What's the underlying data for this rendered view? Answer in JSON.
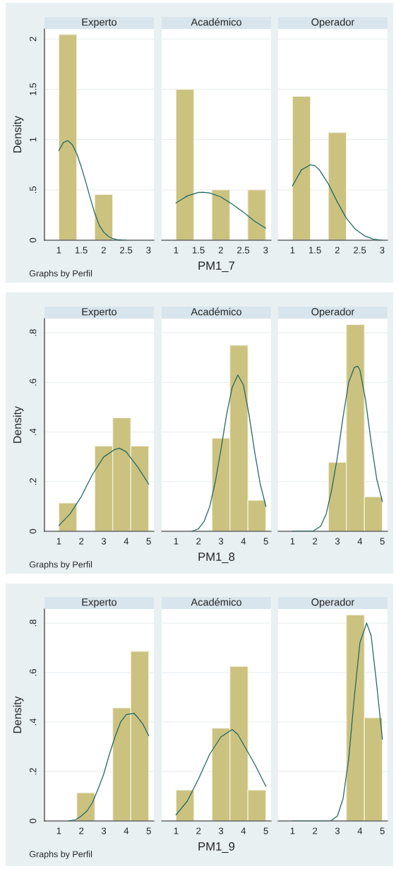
{
  "chart_data": [
    {
      "type": "histogram",
      "title": "Experto",
      "ylabel": "Density",
      "annotations": [
        "Graphs by Perfil"
      ],
      "grid": "y",
      "tick_labels": true,
      "xlim": [
        0.68,
        3.12
      ],
      "ylim": [
        0,
        2.1
      ],
      "xticks": [
        1,
        1.5,
        2,
        2.5,
        3
      ],
      "yticks": [
        0,
        {
          "value": 0.5,
          "label": ".5"
        },
        1,
        1.5,
        2
      ],
      "series": [
        {
          "color": "#cbc280",
          "bins": [
            1,
            1.4,
            1.8,
            2.2,
            2.6,
            3
          ],
          "values": [
            2.045,
            0,
            0.455,
            0,
            0
          ]
        },
        {
          "type": "line",
          "color": "#1f6660",
          "x": [
            1,
            1.1,
            1.2,
            1.3,
            1.4,
            1.5,
            1.6,
            1.7,
            1.8,
            1.9,
            2.0,
            2.1,
            2.2,
            2.3,
            2.4,
            2.5
          ],
          "values": [
            0.89,
            0.97,
            0.99,
            0.95,
            0.86,
            0.73,
            0.58,
            0.42,
            0.27,
            0.15,
            0.08,
            0.04,
            0.016,
            0.006,
            0.002,
            0
          ]
        }
      ]
    },
    {
      "type": "histogram",
      "title": "Académico",
      "xlabel": "PM1_7",
      "grid": "y",
      "tick_labels": "x",
      "xlim": [
        0.68,
        3.12
      ],
      "ylim": [
        0,
        2.1
      ],
      "xticks": [
        1,
        1.5,
        2,
        2.5,
        3
      ],
      "yticks": [
        {
          "value": 0,
          "label": null
        },
        {
          "value": 0.5,
          "label": null
        },
        {
          "value": 1,
          "label": null
        },
        {
          "value": 1.5,
          "label": null
        },
        {
          "value": 2,
          "label": null
        }
      ],
      "series": [
        {
          "color": "#cbc280",
          "bins": [
            1,
            1.4,
            1.8,
            2.2,
            2.6,
            3
          ],
          "values": [
            1.5,
            0,
            0.5,
            0,
            0.5
          ]
        },
        {
          "type": "line",
          "color": "#1f6660",
          "x": [
            1,
            1.25,
            1.5,
            1.6,
            1.75,
            2,
            2.25,
            2.5,
            2.75,
            3
          ],
          "values": [
            0.37,
            0.44,
            0.475,
            0.477,
            0.47,
            0.43,
            0.36,
            0.28,
            0.19,
            0.12
          ]
        }
      ]
    },
    {
      "type": "histogram",
      "title": "Operador",
      "grid": "y",
      "tick_labels": "x",
      "xlim": [
        0.68,
        3.12
      ],
      "ylim": [
        0,
        2.1
      ],
      "xticks": [
        1,
        1.5,
        2,
        2.5,
        3
      ],
      "yticks": [
        {
          "value": 0,
          "label": null
        },
        {
          "value": 0.5,
          "label": null
        },
        {
          "value": 1,
          "label": null
        },
        {
          "value": 1.5,
          "label": null
        },
        {
          "value": 2,
          "label": null
        }
      ],
      "series": [
        {
          "color": "#cbc280",
          "bins": [
            1,
            1.4,
            1.8,
            2.2,
            2.6,
            3
          ],
          "values": [
            1.43,
            0,
            1.07,
            0,
            0
          ]
        },
        {
          "type": "line",
          "color": "#1f6660",
          "x": [
            1,
            1.2,
            1.4,
            1.5,
            1.6,
            1.8,
            2.0,
            2.2,
            2.4,
            2.6,
            2.8,
            3
          ],
          "values": [
            0.54,
            0.7,
            0.75,
            0.74,
            0.7,
            0.56,
            0.38,
            0.22,
            0.11,
            0.045,
            0.012,
            0
          ]
        }
      ]
    },
    {
      "type": "histogram",
      "title": "Experto",
      "ylabel": "Density",
      "annotations": [
        "Graphs by Perfil"
      ],
      "grid": "y",
      "tick_labels": true,
      "xlim": [
        0.36,
        5.23
      ],
      "ylim": [
        0,
        0.857
      ],
      "xticks": [
        1,
        2,
        3,
        4,
        5
      ],
      "yticks": [
        0,
        {
          "value": 0.2,
          "label": ".2"
        },
        {
          "value": 0.4,
          "label": ".4"
        },
        {
          "value": 0.6,
          "label": ".6"
        },
        {
          "value": 0.8,
          "label": ".8"
        }
      ],
      "series": [
        {
          "color": "#cbc280",
          "bins": [
            1,
            1.8,
            2.6,
            3.4,
            4.2,
            5
          ],
          "values": [
            0.114,
            0,
            0.343,
            0.457,
            0.343
          ]
        },
        {
          "type": "line",
          "color": "#1f6660",
          "x": [
            1,
            1.5,
            2,
            2.5,
            3,
            3.5,
            3.7,
            4,
            4.5,
            5
          ],
          "values": [
            0.023,
            0.07,
            0.14,
            0.23,
            0.3,
            0.33,
            0.335,
            0.32,
            0.26,
            0.19
          ]
        }
      ]
    },
    {
      "type": "histogram",
      "title": "Académico",
      "xlabel": "PM1_8",
      "grid": "y",
      "tick_labels": "x",
      "xlim": [
        0.36,
        5.23
      ],
      "ylim": [
        0,
        0.857
      ],
      "xticks": [
        1,
        2,
        3,
        4,
        5
      ],
      "yticks": [
        {
          "value": 0,
          "label": null
        },
        {
          "value": 0.2,
          "label": null
        },
        {
          "value": 0.4,
          "label": null
        },
        {
          "value": 0.6,
          "label": null
        },
        {
          "value": 0.8,
          "label": null
        }
      ],
      "series": [
        {
          "color": "#cbc280",
          "bins": [
            1,
            1.8,
            2.6,
            3.4,
            4.2,
            5
          ],
          "values": [
            0,
            0,
            0.375,
            0.75,
            0.125
          ]
        },
        {
          "type": "line",
          "color": "#1f6660",
          "x": [
            1.7,
            2,
            2.25,
            2.5,
            2.75,
            3,
            3.25,
            3.5,
            3.75,
            4,
            4.25,
            4.5,
            4.75,
            5
          ],
          "values": [
            0,
            0.01,
            0.04,
            0.1,
            0.2,
            0.33,
            0.47,
            0.58,
            0.63,
            0.59,
            0.47,
            0.32,
            0.19,
            0.1
          ]
        }
      ]
    },
    {
      "type": "histogram",
      "title": "Operador",
      "grid": "y",
      "tick_labels": "x",
      "xlim": [
        0.36,
        5.23
      ],
      "ylim": [
        0,
        0.857
      ],
      "xticks": [
        1,
        2,
        3,
        4,
        5
      ],
      "yticks": [
        {
          "value": 0,
          "label": null
        },
        {
          "value": 0.2,
          "label": null
        },
        {
          "value": 0.4,
          "label": null
        },
        {
          "value": 0.6,
          "label": null
        },
        {
          "value": 0.8,
          "label": null
        }
      ],
      "series": [
        {
          "color": "#cbc280",
          "bins": [
            1,
            1.8,
            2.6,
            3.4,
            4.2,
            5
          ],
          "values": [
            0,
            0,
            0.278,
            0.833,
            0.139
          ]
        },
        {
          "type": "line",
          "color": "#1f6660",
          "x": [
            1,
            1.9,
            2.25,
            2.5,
            2.75,
            3,
            3.25,
            3.5,
            3.75,
            3.9,
            4,
            4.25,
            4.5,
            4.75,
            5
          ],
          "values": [
            0,
            0,
            0.02,
            0.07,
            0.17,
            0.3,
            0.46,
            0.6,
            0.66,
            0.665,
            0.65,
            0.53,
            0.36,
            0.21,
            0.12
          ]
        }
      ]
    },
    {
      "type": "histogram",
      "title": "Experto",
      "ylabel": "Density",
      "annotations": [
        "Graphs by Perfil"
      ],
      "grid": "y",
      "tick_labels": true,
      "xlim": [
        0.36,
        5.23
      ],
      "ylim": [
        0,
        0.857
      ],
      "xticks": [
        1,
        2,
        3,
        4,
        5
      ],
      "yticks": [
        0,
        {
          "value": 0.2,
          "label": ".2"
        },
        {
          "value": 0.4,
          "label": ".4"
        },
        {
          "value": 0.6,
          "label": ".6"
        },
        {
          "value": 0.8,
          "label": ".8"
        }
      ],
      "series": [
        {
          "color": "#cbc280",
          "bins": [
            1,
            1.8,
            2.6,
            3.4,
            4.2,
            5
          ],
          "values": [
            0,
            0.114,
            0,
            0.457,
            0.686
          ]
        },
        {
          "type": "line",
          "color": "#1f6660",
          "x": [
            1.4,
            1.75,
            2,
            2.25,
            2.5,
            2.75,
            3,
            3.25,
            3.5,
            3.75,
            4,
            4.35,
            4.5,
            4.75,
            5
          ],
          "values": [
            0,
            0.005,
            0.02,
            0.04,
            0.075,
            0.13,
            0.19,
            0.27,
            0.34,
            0.4,
            0.43,
            0.435,
            0.42,
            0.39,
            0.345
          ]
        }
      ]
    },
    {
      "type": "histogram",
      "title": "Académico",
      "xlabel": "PM1_9",
      "grid": "y",
      "tick_labels": "x",
      "xlim": [
        0.36,
        5.23
      ],
      "ylim": [
        0,
        0.857
      ],
      "xticks": [
        1,
        2,
        3,
        4,
        5
      ],
      "yticks": [
        {
          "value": 0,
          "label": null
        },
        {
          "value": 0.2,
          "label": null
        },
        {
          "value": 0.4,
          "label": null
        },
        {
          "value": 0.6,
          "label": null
        },
        {
          "value": 0.8,
          "label": null
        }
      ],
      "series": [
        {
          "color": "#cbc280",
          "bins": [
            1,
            1.8,
            2.6,
            3.4,
            4.2,
            5
          ],
          "values": [
            0.125,
            0,
            0.375,
            0.625,
            0.125
          ]
        },
        {
          "type": "line",
          "color": "#1f6660",
          "x": [
            1,
            1.5,
            2,
            2.5,
            3,
            3.5,
            3.75,
            4,
            4.5,
            5
          ],
          "values": [
            0.025,
            0.08,
            0.17,
            0.27,
            0.34,
            0.37,
            0.35,
            0.31,
            0.23,
            0.14
          ]
        }
      ]
    },
    {
      "type": "histogram",
      "title": "Operador",
      "grid": "y",
      "tick_labels": "x",
      "xlim": [
        0.36,
        5.23
      ],
      "ylim": [
        0,
        0.857
      ],
      "xticks": [
        1,
        2,
        3,
        4,
        5
      ],
      "yticks": [
        {
          "value": 0,
          "label": null
        },
        {
          "value": 0.2,
          "label": null
        },
        {
          "value": 0.4,
          "label": null
        },
        {
          "value": 0.6,
          "label": null
        },
        {
          "value": 0.8,
          "label": null
        }
      ],
      "series": [
        {
          "color": "#cbc280",
          "bins": [
            1,
            1.8,
            2.6,
            3.4,
            4.2,
            5
          ],
          "values": [
            0,
            0,
            0,
            0.833,
            0.417
          ]
        },
        {
          "type": "line",
          "color": "#1f6660",
          "x": [
            1,
            2,
            2.7,
            3,
            3.25,
            3.5,
            3.75,
            4,
            4.3,
            4.5,
            4.75,
            5
          ],
          "values": [
            0,
            0,
            0,
            0.02,
            0.09,
            0.25,
            0.5,
            0.72,
            0.8,
            0.75,
            0.55,
            0.33
          ]
        }
      ]
    }
  ]
}
